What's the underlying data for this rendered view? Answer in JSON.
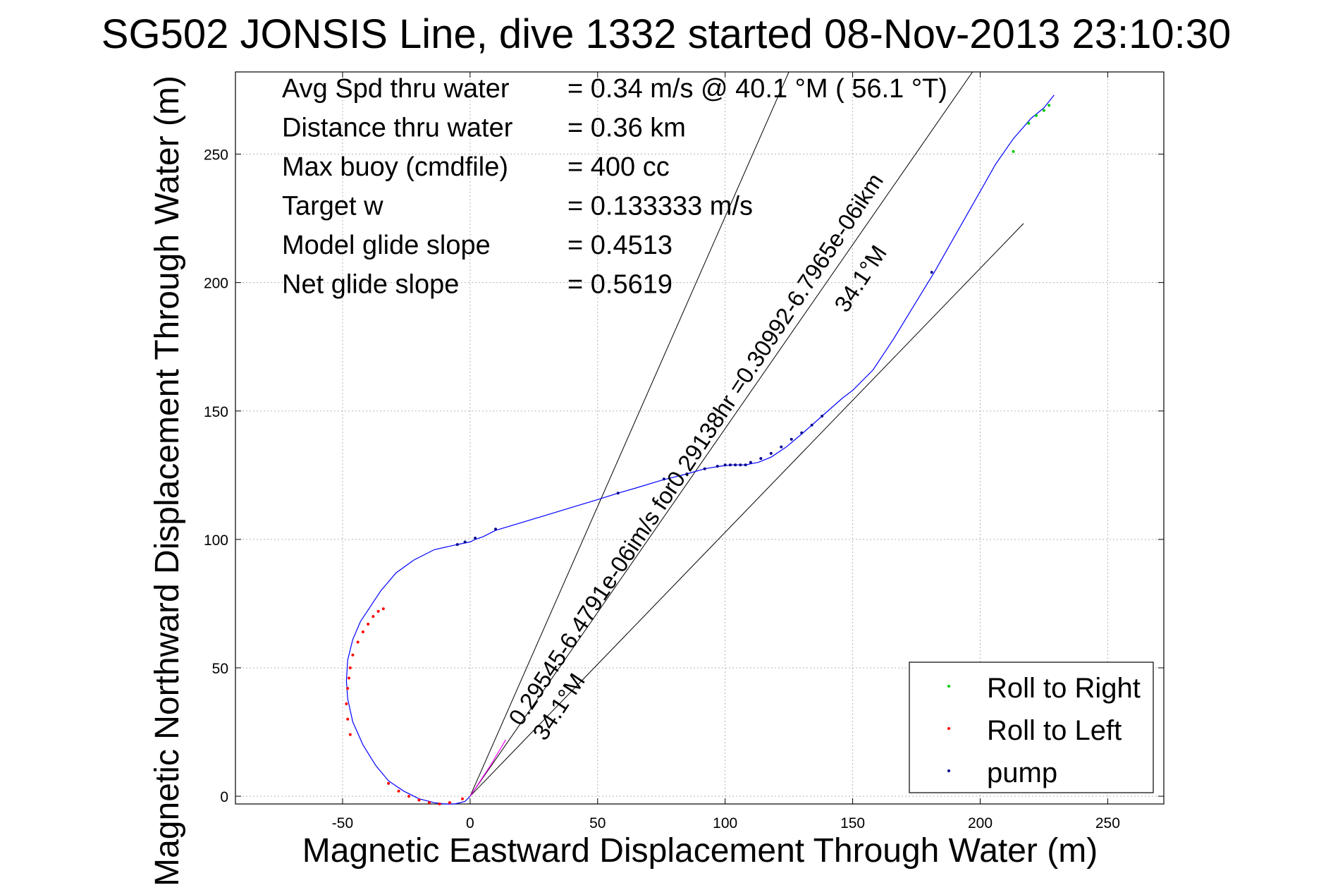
{
  "chart_data": {
    "type": "line",
    "title": "SG502 JONSIS Line, dive 1332 started 08-Nov-2013 23:10:30",
    "xlabel": "Magnetic Eastward Displacement Through Water (m)",
    "ylabel": "Magnetic Northward Displacement Through Water (m)",
    "xlim": [
      -92,
      272
    ],
    "ylim": [
      -3,
      282
    ],
    "xticks": [
      -50,
      0,
      50,
      100,
      150,
      200,
      250
    ],
    "yticks": [
      0,
      50,
      100,
      150,
      200,
      250
    ],
    "xtick_labels": [
      "-50",
      "0",
      "50",
      "100",
      "150",
      "200",
      "250"
    ],
    "ytick_labels": [
      "0",
      "50",
      "100",
      "150",
      "200",
      "250"
    ],
    "grid": true,
    "legend_position": "bottom-right",
    "stats": [
      {
        "label": "Avg Spd thru water",
        "value": "=  0.34 m/s @  40.1 °M ( 56.1 °T)"
      },
      {
        "label": "Distance thru water",
        "value": "=  0.36 km"
      },
      {
        "label": "Max buoy (cmdfile)",
        "value": "= 400 cc"
      },
      {
        "label": "Target w",
        "value": "= 0.133333 m/s"
      },
      {
        "label": "Model glide slope",
        "value": "= 0.4513"
      },
      {
        "label": "Net glide slope",
        "value": "= 0.5619"
      }
    ],
    "annotations": {
      "line1": "0.29545-6.4791e-06im/s for0.29138hr =0.30992-6.7965e-06ikm",
      "angle_upper": "34.1°M",
      "angle_lower": "34.1°M"
    },
    "reference_lines": [
      {
        "from": [
          0,
          0
        ],
        "to": [
          125,
          282
        ]
      },
      {
        "from": [
          0,
          0
        ],
        "to": [
          217,
          223
        ]
      },
      {
        "from": [
          0,
          0
        ],
        "to": [
          197,
          282
        ]
      }
    ],
    "series": [
      {
        "name": "track",
        "color": "#0000ff",
        "x": [
          0,
          -2,
          -6,
          -10,
          -14,
          -20,
          -26,
          -32,
          -37,
          -42,
          -46,
          -48,
          -48.5,
          -48,
          -46,
          -43,
          -39,
          -35,
          -29,
          -22,
          -14,
          -5,
          0,
          2,
          5,
          10,
          20,
          30,
          40,
          50,
          58,
          65,
          75,
          85,
          92,
          98,
          103,
          108,
          113,
          118,
          124,
          130,
          138,
          146,
          150,
          158,
          166,
          174,
          182,
          190,
          198,
          206,
          213,
          220,
          225,
          229
        ],
        "y": [
          0,
          -2,
          -3,
          -3,
          -2.5,
          -1,
          2,
          6,
          12,
          20,
          29,
          38,
          45,
          53,
          61,
          68,
          74,
          80,
          87,
          92,
          96,
          98,
          99,
          100,
          101,
          103.5,
          106.5,
          109.5,
          112.5,
          115.5,
          118,
          120,
          123,
          125.5,
          127.5,
          128.5,
          129,
          129,
          130,
          132,
          136,
          141,
          148,
          155,
          158,
          166,
          178,
          191,
          204,
          218,
          232,
          246,
          256,
          264,
          268,
          273
        ]
      },
      {
        "name": "magenta heading",
        "color": "#ff00ff",
        "x": [
          0,
          8,
          14
        ],
        "y": [
          0,
          12,
          22
        ]
      }
    ],
    "markers": [
      {
        "name": "Roll to Right",
        "color": "#00cc00",
        "x": [
          213,
          219,
          222,
          225,
          227
        ],
        "y": [
          251,
          262,
          265,
          267,
          269
        ]
      },
      {
        "name": "Roll to Left",
        "color": "#ff0000",
        "x": [
          -47,
          -48,
          -48.5,
          -48,
          -47.5,
          -47,
          -46,
          -44,
          -42,
          -40,
          -38,
          -36,
          -34,
          -32,
          -28,
          -24,
          -20,
          -16,
          -12,
          -8,
          -3
        ],
        "y": [
          24,
          30,
          36,
          42,
          46,
          50,
          55,
          60,
          64,
          67,
          70,
          72,
          73,
          5,
          2,
          0,
          -1.5,
          -2.5,
          -3,
          -2.5,
          -1
        ]
      },
      {
        "name": "pump",
        "color": "#00008b",
        "x": [
          -5,
          -2,
          2,
          10,
          58,
          76,
          85,
          92,
          97,
          100,
          102,
          104,
          106,
          108,
          110,
          114,
          118,
          122,
          126,
          130,
          134,
          138,
          181
        ],
        "y": [
          98,
          99,
          100.5,
          104,
          118,
          123.5,
          125.5,
          127.5,
          128.5,
          129,
          129,
          129,
          129,
          129,
          130,
          131.5,
          133.5,
          136,
          139,
          141.5,
          144.5,
          148,
          204
        ]
      }
    ],
    "legend": [
      {
        "label": "Roll to Right",
        "color": "#00cc00"
      },
      {
        "label": "Roll to Left",
        "color": "#ff0000"
      },
      {
        "label": "pump",
        "color": "#00008b"
      }
    ]
  }
}
